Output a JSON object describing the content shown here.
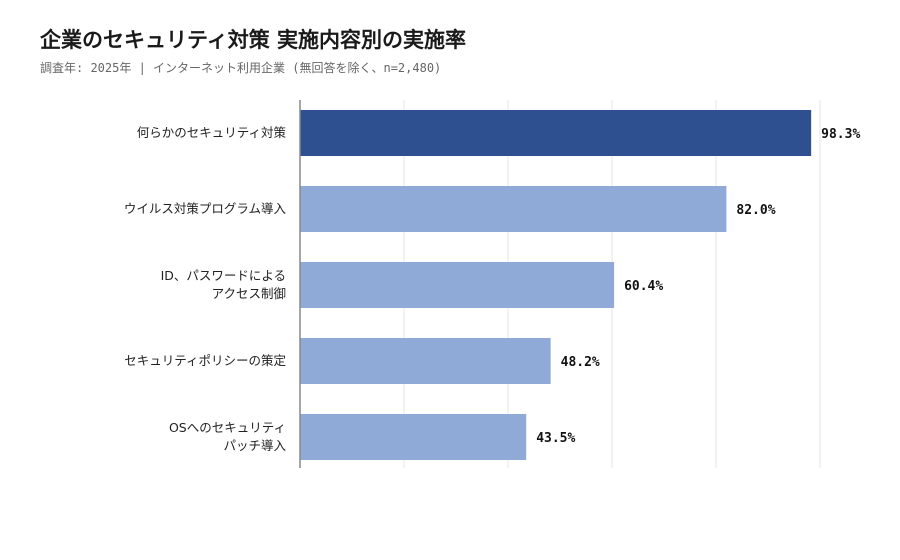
{
  "chart_data": {
    "type": "bar",
    "orientation": "horizontal",
    "title": "企業のセキュリティ対策 実施内容別の実施率",
    "subtitle": "調査年: 2025年 | インターネット利用企業 (無回答を除く、n=2,480)",
    "categories": [
      [
        "何らかのセキュリティ対策"
      ],
      [
        "ウイルス対策プログラム導入"
      ],
      [
        "ID、パスワードによる",
        "アクセス制御"
      ],
      [
        "セキュリティポリシーの策定"
      ],
      [
        "OSへのセキュリティ",
        "パッチ導入"
      ]
    ],
    "values": [
      98.3,
      82.0,
      60.4,
      48.2,
      43.5
    ],
    "value_labels": [
      "98.3%",
      "82.0%",
      "60.4%",
      "48.2%",
      "43.5%"
    ],
    "xlim": [
      0,
      100
    ],
    "grid": true,
    "colors": {
      "highlight": "#2e5090",
      "default": "#8faad6",
      "grid": "#e6e6e6",
      "axis": "#888888"
    }
  }
}
